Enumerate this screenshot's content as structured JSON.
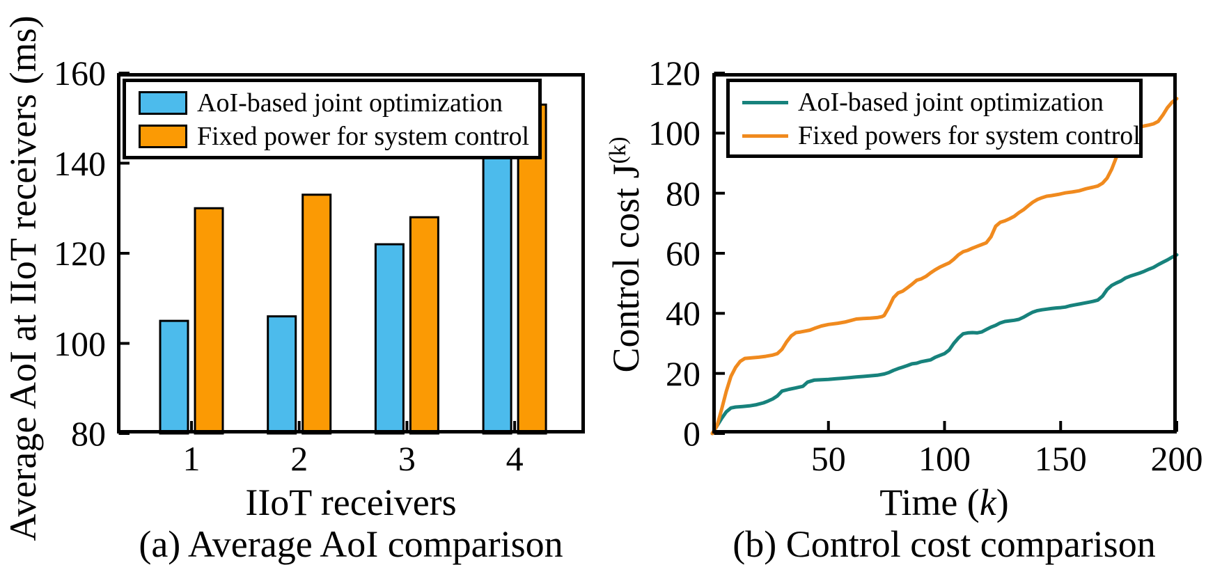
{
  "colors": {
    "background": "#FFFFFF",
    "axis_black": "#000000",
    "bar_blue": "#4CBBEC",
    "bar_orange": "#FB9A04",
    "line_teal": "#17827C",
    "line_orange": "#F08A1E"
  },
  "panel_a": {
    "caption": "(a) Average AoI comparison",
    "xlabel": "IIoT receivers",
    "ylabel": "Average AoI at IIoT receivers (ms)",
    "legend": [
      "AoI-based joint optimization",
      "Fixed power for system control"
    ]
  },
  "panel_b": {
    "caption": "(b) Control cost comparison",
    "xlabel_pre": "Time (",
    "xlabel_k": "k",
    "xlabel_post": ")",
    "ylabel_base": "Control cost J",
    "ylabel_sup": "(k)",
    "legend": [
      "AoI-based joint optimization",
      "Fixed powers for system control"
    ]
  },
  "chart_data": [
    {
      "type": "bar",
      "title": "(a) Average AoI comparison",
      "xlabel": "IIoT receivers",
      "ylabel": "Average AoI at IIoT receivers (ms)",
      "categories": [
        "1",
        "2",
        "3",
        "4"
      ],
      "series": [
        {
          "name": "AoI-based joint optimization",
          "color": "#4CBBEC",
          "values": [
            105,
            106,
            122,
            143
          ]
        },
        {
          "name": "Fixed power for system control",
          "color": "#FB9A04",
          "values": [
            130,
            133,
            128,
            153
          ]
        }
      ],
      "ylim": [
        80,
        160
      ],
      "yticks": [
        80,
        100,
        120,
        140,
        160
      ],
      "grid": false,
      "legend_position": "upper left"
    },
    {
      "type": "line",
      "title": "(b) Control cost comparison",
      "xlabel": "Time (k)",
      "ylabel": "Control cost J^(k)",
      "xlim": [
        0,
        200
      ],
      "ylim": [
        0,
        120
      ],
      "xticks": [
        50,
        100,
        150,
        200
      ],
      "yticks": [
        0,
        20,
        40,
        60,
        80,
        100,
        120
      ],
      "grid": false,
      "legend_position": "upper left",
      "series": [
        {
          "name": "AoI-based joint optimization",
          "color": "#17827C",
          "points": [
            [
              0,
              0
            ],
            [
              2,
              2.5
            ],
            [
              4,
              5
            ],
            [
              6,
              7.2
            ],
            [
              8,
              8.5
            ],
            [
              10,
              8.8
            ],
            [
              13,
              9
            ],
            [
              16,
              9.2
            ],
            [
              19,
              9.6
            ],
            [
              22,
              10.2
            ],
            [
              24,
              10.8
            ],
            [
              26,
              11.5
            ],
            [
              28,
              12.5
            ],
            [
              30,
              14.1
            ],
            [
              33,
              14.7
            ],
            [
              36,
              15.2
            ],
            [
              39,
              15.7
            ],
            [
              41,
              17.1
            ],
            [
              44,
              17.8
            ],
            [
              47,
              17.9
            ],
            [
              50,
              18
            ],
            [
              53,
              18.2
            ],
            [
              56,
              18.4
            ],
            [
              59,
              18.6
            ],
            [
              62,
              18.8
            ],
            [
              65,
              19
            ],
            [
              68,
              19.2
            ],
            [
              71,
              19.4
            ],
            [
              74,
              19.8
            ],
            [
              76,
              20.3
            ],
            [
              78,
              21
            ],
            [
              80,
              21.6
            ],
            [
              82,
              22.1
            ],
            [
              84,
              22.6
            ],
            [
              86,
              23.2
            ],
            [
              88,
              23.4
            ],
            [
              90,
              23.9
            ],
            [
              92,
              24.2
            ],
            [
              94,
              24.5
            ],
            [
              96,
              25.4
            ],
            [
              98,
              26
            ],
            [
              100,
              26.6
            ],
            [
              102,
              27.8
            ],
            [
              104,
              30
            ],
            [
              106,
              31.8
            ],
            [
              108,
              33.2
            ],
            [
              110,
              33.5
            ],
            [
              112,
              33.6
            ],
            [
              114,
              33.5
            ],
            [
              116,
              33.8
            ],
            [
              118,
              34.6
            ],
            [
              120,
              35.4
            ],
            [
              122,
              36
            ],
            [
              124,
              36.8
            ],
            [
              126,
              37.3
            ],
            [
              128,
              37.5
            ],
            [
              130,
              37.7
            ],
            [
              132,
              38
            ],
            [
              134,
              38.7
            ],
            [
              136,
              39.6
            ],
            [
              138,
              40.4
            ],
            [
              140,
              40.9
            ],
            [
              142,
              41.2
            ],
            [
              144,
              41.4
            ],
            [
              146,
              41.6
            ],
            [
              148,
              41.8
            ],
            [
              150,
              41.9
            ],
            [
              152,
              42.1
            ],
            [
              154,
              42.5
            ],
            [
              156,
              42.8
            ],
            [
              158,
              43.1
            ],
            [
              160,
              43.4
            ],
            [
              162,
              43.7
            ],
            [
              164,
              44
            ],
            [
              166,
              44.4
            ],
            [
              168,
              45.7
            ],
            [
              170,
              47.9
            ],
            [
              172,
              49.3
            ],
            [
              174,
              50.1
            ],
            [
              176,
              50.8
            ],
            [
              178,
              51.8
            ],
            [
              180,
              52.4
            ],
            [
              182,
              52.9
            ],
            [
              184,
              53.4
            ],
            [
              186,
              54
            ],
            [
              188,
              54.7
            ],
            [
              190,
              55.3
            ],
            [
              192,
              56.2
            ],
            [
              194,
              57
            ],
            [
              196,
              57.8
            ],
            [
              198,
              58.7
            ],
            [
              200,
              59.5
            ]
          ]
        },
        {
          "name": "Fixed powers for system control",
          "color": "#F08A1E",
          "points": [
            [
              0,
              0
            ],
            [
              2,
              2.5
            ],
            [
              4,
              8
            ],
            [
              6,
              14
            ],
            [
              8,
              19
            ],
            [
              10,
              22
            ],
            [
              12,
              24
            ],
            [
              14,
              25
            ],
            [
              17,
              25.2
            ],
            [
              20,
              25.4
            ],
            [
              23,
              25.7
            ],
            [
              26,
              26.1
            ],
            [
              28,
              26.6
            ],
            [
              30,
              28
            ],
            [
              32,
              30.5
            ],
            [
              34,
              32.5
            ],
            [
              36,
              33.6
            ],
            [
              38,
              33.8
            ],
            [
              40,
              34.1
            ],
            [
              42,
              34.4
            ],
            [
              44,
              35
            ],
            [
              47,
              35.8
            ],
            [
              50,
              36.3
            ],
            [
              54,
              36.7
            ],
            [
              57,
              37.1
            ],
            [
              60,
              37.7
            ],
            [
              62,
              38.1
            ],
            [
              65,
              38.3
            ],
            [
              68,
              38.4
            ],
            [
              71,
              38.6
            ],
            [
              73,
              38.9
            ],
            [
              74,
              39.3
            ],
            [
              76,
              42
            ],
            [
              78,
              45.2
            ],
            [
              80,
              46.8
            ],
            [
              82,
              47.4
            ],
            [
              84,
              48.5
            ],
            [
              86,
              49.7
            ],
            [
              88,
              51
            ],
            [
              90,
              51.5
            ],
            [
              92,
              52.3
            ],
            [
              94,
              53.5
            ],
            [
              96,
              54.5
            ],
            [
              98,
              55.4
            ],
            [
              100,
              56.1
            ],
            [
              102,
              56.8
            ],
            [
              104,
              58
            ],
            [
              106,
              59.5
            ],
            [
              108,
              60.5
            ],
            [
              110,
              61
            ],
            [
              112,
              61.7
            ],
            [
              114,
              62.3
            ],
            [
              116,
              62.9
            ],
            [
              118,
              63.5
            ],
            [
              120,
              65.5
            ],
            [
              122,
              69
            ],
            [
              124,
              70.3
            ],
            [
              126,
              70.8
            ],
            [
              128,
              71.5
            ],
            [
              130,
              72.3
            ],
            [
              132,
              73.5
            ],
            [
              134,
              74.5
            ],
            [
              136,
              75.8
            ],
            [
              138,
              77
            ],
            [
              140,
              77.9
            ],
            [
              142,
              78.5
            ],
            [
              144,
              79
            ],
            [
              146,
              79.2
            ],
            [
              149,
              79.6
            ],
            [
              152,
              80.1
            ],
            [
              155,
              80.4
            ],
            [
              158,
              80.8
            ],
            [
              161,
              81.5
            ],
            [
              164,
              82
            ],
            [
              166,
              82.4
            ],
            [
              168,
              83.3
            ],
            [
              170,
              85
            ],
            [
              172,
              88
            ],
            [
              174,
              92
            ],
            [
              176,
              96
            ],
            [
              178,
              98.8
            ],
            [
              180,
              100.5
            ],
            [
              182,
              101.2
            ],
            [
              184,
              102
            ],
            [
              186,
              102.4
            ],
            [
              188,
              102.7
            ],
            [
              190,
              103.1
            ],
            [
              192,
              103.9
            ],
            [
              194,
              106
            ],
            [
              196,
              108.5
            ],
            [
              198,
              110.3
            ],
            [
              200,
              111.5
            ]
          ]
        }
      ]
    }
  ]
}
